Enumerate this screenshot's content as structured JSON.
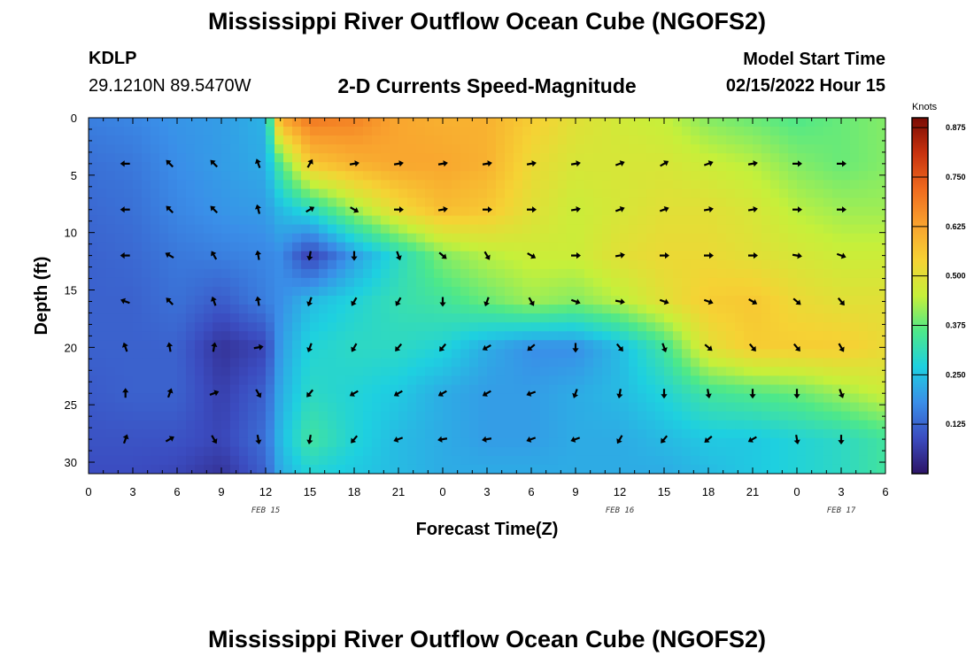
{
  "header": {
    "title": "Mississippi River Outflow Ocean Cube (NGOFS2)",
    "station_id": "KDLP",
    "station_coords": "29.1210N  89.5470W",
    "subtitle": "2-D Currents Speed-Magnitude",
    "model_start_label": "Model Start Time",
    "model_start_value": "02/15/2022 Hour 15"
  },
  "footer": {
    "title": "Mississippi River Outflow Ocean Cube (NGOFS2)"
  },
  "chart_data": {
    "type": "heatmap",
    "title": "2-D Currents Speed-Magnitude",
    "xlabel": "Forecast Time(Z)",
    "ylabel": "Depth (ft)",
    "x_ticks": [
      {
        "x": 0,
        "label": "0"
      },
      {
        "x": 3,
        "label": "3"
      },
      {
        "x": 6,
        "label": "6"
      },
      {
        "x": 9,
        "label": "9"
      },
      {
        "x": 12,
        "label": "12"
      },
      {
        "x": 15,
        "label": "15"
      },
      {
        "x": 18,
        "label": "18"
      },
      {
        "x": 21,
        "label": "21"
      },
      {
        "x": 24,
        "label": "0"
      },
      {
        "x": 27,
        "label": "3"
      },
      {
        "x": 30,
        "label": "6"
      },
      {
        "x": 33,
        "label": "9"
      },
      {
        "x": 36,
        "label": "12"
      },
      {
        "x": 39,
        "label": "15"
      },
      {
        "x": 42,
        "label": "18"
      },
      {
        "x": 45,
        "label": "21"
      },
      {
        "x": 48,
        "label": "0"
      },
      {
        "x": 51,
        "label": "3"
      },
      {
        "x": 54,
        "label": "6"
      }
    ],
    "day_labels": [
      {
        "x": 12,
        "label": "FEB 15"
      },
      {
        "x": 36,
        "label": "FEB 16"
      },
      {
        "x": 51,
        "label": "FEB 17"
      }
    ],
    "xlim": [
      0,
      54
    ],
    "y_ticks": [
      0,
      5,
      10,
      15,
      20,
      25,
      30
    ],
    "ylim": [
      0,
      31
    ],
    "y_inverted": true,
    "colorbar": {
      "unit": "Knots",
      "range": [
        0.0,
        0.9
      ],
      "ticks": [
        0.125,
        0.25,
        0.375,
        0.5,
        0.625,
        0.75,
        0.875
      ],
      "tick_labels": [
        "0.125",
        "0.250",
        "0.375",
        "0.500",
        "0.625",
        "0.750",
        "0.875"
      ],
      "colors": [
        "#2d1466",
        "#3b4cc0",
        "#3a8ee8",
        "#1ed0e0",
        "#4de88a",
        "#c6f03a",
        "#f6d234",
        "#f9a12e",
        "#ef6a1e",
        "#c8320e",
        "#7a0b04"
      ]
    },
    "vector_times": [
      2.5,
      5.5,
      8.5,
      11.5,
      15,
      18,
      21,
      24,
      27,
      30,
      33,
      36,
      39,
      42,
      45,
      48,
      51
    ],
    "vector_depths": [
      4,
      8,
      12,
      16,
      20,
      24,
      28
    ],
    "speed_key_times": [
      0,
      3,
      6,
      9,
      12,
      13,
      15,
      18,
      21,
      24,
      27,
      30,
      33,
      36,
      39,
      42,
      45,
      48,
      51,
      54
    ],
    "speed_key_depths": [
      0,
      4,
      8,
      12,
      16,
      20,
      24,
      28,
      31
    ],
    "speed_knots": [
      [
        0.16,
        0.17,
        0.19,
        0.2,
        0.23,
        0.62,
        0.7,
        0.68,
        0.62,
        0.6,
        0.6,
        0.55,
        0.5,
        0.47,
        0.45,
        0.4,
        0.38,
        0.36,
        0.38,
        0.4
      ],
      [
        0.14,
        0.15,
        0.18,
        0.2,
        0.22,
        0.36,
        0.56,
        0.6,
        0.62,
        0.62,
        0.6,
        0.52,
        0.48,
        0.48,
        0.48,
        0.46,
        0.44,
        0.4,
        0.38,
        0.4
      ],
      [
        0.13,
        0.14,
        0.17,
        0.19,
        0.2,
        0.24,
        0.3,
        0.42,
        0.52,
        0.58,
        0.56,
        0.5,
        0.46,
        0.48,
        0.5,
        0.5,
        0.48,
        0.44,
        0.42,
        0.42
      ],
      [
        0.12,
        0.13,
        0.15,
        0.16,
        0.17,
        0.18,
        0.07,
        0.2,
        0.3,
        0.4,
        0.44,
        0.46,
        0.46,
        0.5,
        0.52,
        0.52,
        0.5,
        0.48,
        0.46,
        0.46
      ],
      [
        0.12,
        0.12,
        0.14,
        0.11,
        0.16,
        0.18,
        0.24,
        0.28,
        0.32,
        0.34,
        0.38,
        0.42,
        0.4,
        0.44,
        0.5,
        0.55,
        0.56,
        0.52,
        0.5,
        0.5
      ],
      [
        0.12,
        0.12,
        0.12,
        0.05,
        0.08,
        0.2,
        0.28,
        0.3,
        0.3,
        0.28,
        0.22,
        0.18,
        0.18,
        0.24,
        0.34,
        0.5,
        0.55,
        0.55,
        0.55,
        0.52
      ],
      [
        0.11,
        0.12,
        0.12,
        0.07,
        0.12,
        0.22,
        0.3,
        0.28,
        0.26,
        0.22,
        0.2,
        0.2,
        0.22,
        0.24,
        0.28,
        0.34,
        0.36,
        0.38,
        0.42,
        0.46
      ],
      [
        0.1,
        0.1,
        0.1,
        0.08,
        0.14,
        0.24,
        0.34,
        0.28,
        0.24,
        0.22,
        0.2,
        0.2,
        0.22,
        0.22,
        0.24,
        0.26,
        0.26,
        0.28,
        0.3,
        0.34
      ],
      [
        0.09,
        0.09,
        0.08,
        0.05,
        0.12,
        0.22,
        0.28,
        0.26,
        0.24,
        0.22,
        0.22,
        0.22,
        0.22,
        0.22,
        0.22,
        0.24,
        0.26,
        0.28,
        0.3,
        0.34
      ]
    ],
    "vector_directions_deg": [
      [
        270,
        315,
        315,
        340,
        30,
        80,
        80,
        80,
        80,
        80,
        80,
        70,
        60,
        70,
        80,
        90,
        90
      ],
      [
        270,
        315,
        315,
        345,
        60,
        120,
        90,
        80,
        90,
        90,
        80,
        70,
        70,
        80,
        80,
        90,
        90
      ],
      [
        270,
        300,
        330,
        350,
        190,
        180,
        160,
        130,
        150,
        120,
        90,
        80,
        90,
        90,
        90,
        100,
        110
      ],
      [
        290,
        315,
        340,
        350,
        200,
        210,
        210,
        180,
        200,
        150,
        110,
        100,
        110,
        110,
        120,
        130,
        140
      ],
      [
        340,
        350,
        10,
        80,
        200,
        210,
        220,
        220,
        240,
        230,
        180,
        140,
        160,
        130,
        140,
        140,
        150
      ],
      [
        0,
        20,
        70,
        150,
        220,
        240,
        240,
        240,
        240,
        250,
        200,
        190,
        180,
        170,
        180,
        180,
        160
      ],
      [
        20,
        60,
        150,
        170,
        190,
        220,
        250,
        260,
        260,
        250,
        250,
        210,
        220,
        230,
        240,
        170,
        180
      ]
    ]
  }
}
